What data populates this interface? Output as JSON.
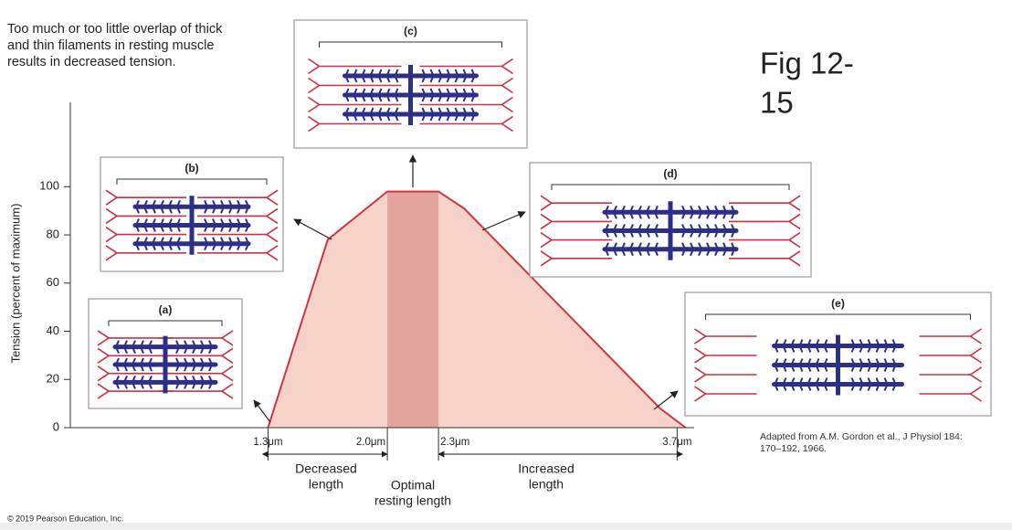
{
  "chart_data": {
    "type": "area",
    "ylabel": "Tension (percent of maximum)",
    "x": [
      1.3,
      1.65,
      2.0,
      2.3,
      2.45,
      3.6,
      3.75
    ],
    "values": [
      0,
      78,
      98,
      98,
      91,
      8,
      0
    ],
    "color": "#f7d2c9",
    "line_color": "#d0343f",
    "band_color": "#e2a59d",
    "xlim": [
      0.14,
      3.8
    ],
    "xticks": [
      {
        "value": 1.3,
        "label": "1.3μm"
      },
      {
        "value": 2.0,
        "label": "2.0μm"
      },
      {
        "value": 2.3,
        "label": "2.3μm"
      },
      {
        "value": 3.7,
        "label": "3.7μm"
      }
    ],
    "ylim": [
      0,
      135
    ],
    "yticks": [
      0,
      20,
      40,
      60,
      80,
      100
    ],
    "annotations": {
      "caption": [
        "Too much or too little overlap of thick",
        "and thin filaments in resting muscle",
        "results in decreased tension."
      ],
      "figure": [
        "Fig 12-",
        "15"
      ],
      "credit": "Adapted from A.M. Gordon et al., J Physiol 184: 170–192, 1966.",
      "copyright": "© 2019 Pearson Education, Inc.",
      "decreased": [
        "Decreased",
        "length"
      ],
      "optimal": [
        "Optimal",
        "resting length"
      ],
      "increased": [
        "Increased",
        "length"
      ],
      "panels": [
        "(a)",
        "(b)",
        "(c)",
        "(d)",
        "(e)"
      ]
    }
  }
}
